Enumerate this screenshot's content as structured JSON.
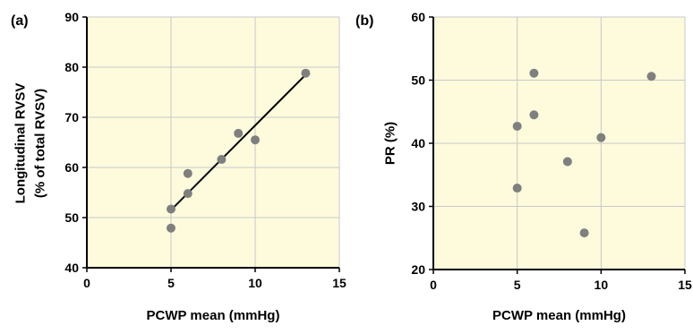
{
  "chart_data": [
    {
      "type": "scatter",
      "panel_label": "(a)",
      "xlabel": "PCWP mean (mmHg)",
      "ylabel_lines": [
        "Longitudinal RVSV",
        "(% of total RVSV)"
      ],
      "xlim": [
        0,
        15
      ],
      "ylim": [
        40,
        90
      ],
      "xticks": [
        0,
        5,
        10,
        15
      ],
      "yticks": [
        40,
        50,
        60,
        70,
        80,
        90
      ],
      "grid": true,
      "background": "#fdfbdc",
      "marker_color": "#7f7f7f",
      "points": [
        {
          "x": 5,
          "y": 51.7
        },
        {
          "x": 5,
          "y": 47.9
        },
        {
          "x": 6,
          "y": 58.8
        },
        {
          "x": 6,
          "y": 54.8
        },
        {
          "x": 8,
          "y": 61.6
        },
        {
          "x": 9,
          "y": 66.8
        },
        {
          "x": 10,
          "y": 65.5
        },
        {
          "x": 13,
          "y": 78.8
        }
      ],
      "trendline": {
        "from": {
          "x": 5,
          "y": 51.5
        },
        "to": {
          "x": 13,
          "y": 78.5
        }
      }
    },
    {
      "type": "scatter",
      "panel_label": "(b)",
      "xlabel": "PCWP mean (mmHg)",
      "ylabel_lines": [
        "PR (%)"
      ],
      "xlim": [
        0,
        15
      ],
      "ylim": [
        20,
        60
      ],
      "xticks": [
        0,
        5,
        10,
        15
      ],
      "yticks": [
        20,
        30,
        40,
        50,
        60
      ],
      "grid": true,
      "background": "#fdfbdc",
      "marker_color": "#7f7f7f",
      "points": [
        {
          "x": 5,
          "y": 42.7
        },
        {
          "x": 5,
          "y": 32.9
        },
        {
          "x": 6,
          "y": 51.1
        },
        {
          "x": 6,
          "y": 44.5
        },
        {
          "x": 8,
          "y": 37.1
        },
        {
          "x": 9,
          "y": 25.8
        },
        {
          "x": 10,
          "y": 40.9
        },
        {
          "x": 13,
          "y": 50.6
        }
      ]
    }
  ]
}
